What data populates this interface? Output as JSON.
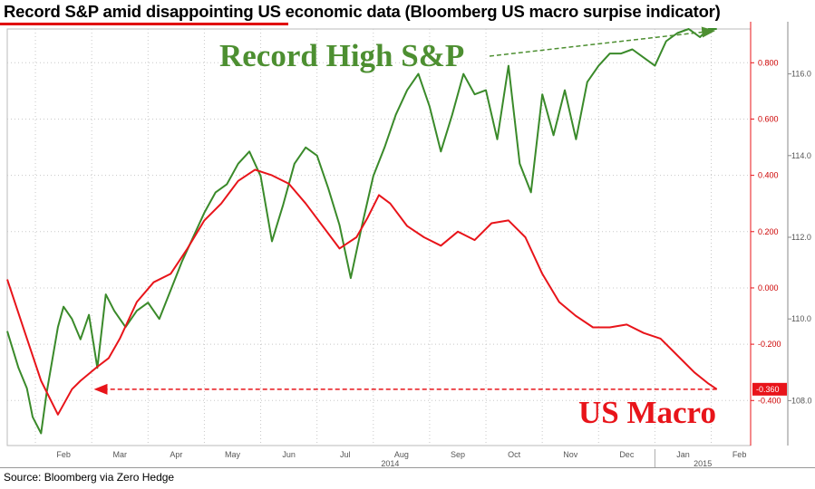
{
  "title": "Record S&P amid disappointing US economic data (Bloomberg US macro surpise indicator)",
  "source": "Source: Bloomberg via Zero Hedge",
  "chart_data": {
    "type": "line",
    "x_ticks": [
      "Feb",
      "Mar",
      "Apr",
      "May",
      "Jun",
      "Jul",
      "Aug",
      "Sep",
      "Oct",
      "Nov",
      "Dec",
      "Jan",
      "Feb"
    ],
    "x_year_labels": [
      "2014",
      "2015"
    ],
    "annotations": {
      "sp": "Record High S&P",
      "macro": "US Macro",
      "last_value": "-0.360"
    },
    "axes": {
      "macro": {
        "side": "right-inner",
        "ylim": [
          -0.56,
          0.92
        ],
        "ticks": [
          "0.800",
          "0.600",
          "0.400",
          "0.200",
          "0.000",
          "-0.200",
          "-0.400"
        ],
        "tick_values": [
          0.8,
          0.6,
          0.4,
          0.2,
          0.0,
          -0.2,
          -0.4
        ]
      },
      "sp": {
        "side": "right-outer",
        "ylim": [
          106.9,
          117.1
        ],
        "ticks": [
          "116.0",
          "114.0",
          "112.0",
          "110.0",
          "108.0"
        ],
        "tick_values": [
          116,
          114,
          112,
          110,
          108
        ]
      }
    },
    "colors": {
      "sp": "#3a8a2a",
      "macro": "#e8141a",
      "sp_annotation": "#4d8f31",
      "macro_annotation": "#e8141a"
    },
    "series": [
      {
        "axis": "sp",
        "x": [
          0,
          0.2,
          0.35,
          0.45,
          0.6,
          0.7,
          0.8,
          0.9,
          1.0,
          1.15,
          1.3,
          1.45,
          1.6,
          1.75,
          1.9,
          2.0,
          2.1,
          2.3,
          2.5,
          2.7,
          2.9,
          3.1,
          3.3,
          3.5,
          3.7,
          3.9,
          4.1,
          4.3,
          4.5,
          4.7,
          4.9,
          5.1,
          5.3,
          5.5,
          5.7,
          5.9,
          6.1,
          6.3,
          6.5,
          6.7,
          6.9,
          7.1,
          7.3,
          7.5,
          7.7,
          7.9,
          8.1,
          8.3,
          8.5,
          8.7,
          8.9,
          9.1,
          9.3,
          9.5,
          9.7,
          9.9,
          10.1,
          10.3,
          10.5,
          10.7,
          10.9,
          11.1,
          11.3,
          11.5,
          11.7,
          11.9,
          12.1,
          12.3,
          12.45,
          12.6
        ],
        "values": [
          109.7,
          108.8,
          108.3,
          107.6,
          107.2,
          108.2,
          109.0,
          109.8,
          110.3,
          110.0,
          109.5,
          110.1,
          108.8,
          110.6,
          110.2,
          110.0,
          109.8,
          110.2,
          110.4,
          110.0,
          110.7,
          111.4,
          112.0,
          112.6,
          113.1,
          113.3,
          113.8,
          114.1,
          113.5,
          111.9,
          112.8,
          113.8,
          114.2,
          114.0,
          113.2,
          112.3,
          111.0,
          112.3,
          113.5,
          114.2,
          115.0,
          115.6,
          116.0,
          115.2,
          114.1,
          115.0,
          116.0,
          115.5,
          115.6,
          114.4,
          116.2,
          113.8,
          113.1,
          115.5,
          114.5,
          115.6,
          114.4,
          115.8,
          116.2,
          116.5,
          116.5,
          116.6,
          116.4,
          116.2,
          116.8,
          117.0,
          117.1,
          116.9,
          117.1,
          117.1
        ]
      },
      {
        "axis": "macro",
        "x": [
          0,
          0.3,
          0.6,
          0.9,
          1.15,
          1.3,
          1.6,
          1.8,
          2.0,
          2.3,
          2.6,
          2.9,
          3.2,
          3.5,
          3.8,
          4.1,
          4.4,
          4.7,
          5.0,
          5.3,
          5.6,
          5.9,
          6.2,
          6.4,
          6.6,
          6.8,
          7.1,
          7.4,
          7.7,
          8.0,
          8.3,
          8.6,
          8.9,
          9.2,
          9.5,
          9.8,
          10.1,
          10.4,
          10.7,
          11.0,
          11.3,
          11.6,
          11.9,
          12.2,
          12.45,
          12.6
        ],
        "values": [
          0.03,
          -0.15,
          -0.33,
          -0.45,
          -0.36,
          -0.33,
          -0.28,
          -0.25,
          -0.18,
          -0.05,
          0.02,
          0.05,
          0.14,
          0.24,
          0.3,
          0.38,
          0.42,
          0.4,
          0.37,
          0.3,
          0.22,
          0.14,
          0.18,
          0.25,
          0.33,
          0.3,
          0.22,
          0.18,
          0.15,
          0.2,
          0.17,
          0.23,
          0.24,
          0.18,
          0.05,
          -0.05,
          -0.1,
          -0.14,
          -0.14,
          -0.13,
          -0.16,
          -0.18,
          -0.24,
          -0.3,
          -0.34,
          -0.36
        ]
      }
    ]
  }
}
